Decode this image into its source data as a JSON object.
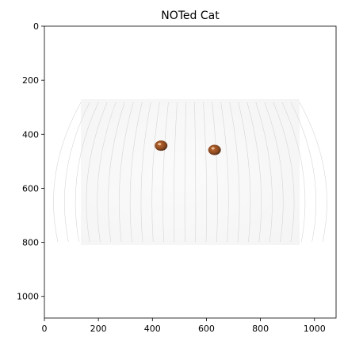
{
  "chart_data": {
    "type": "image",
    "title": "NOTed Cat",
    "xlabel": "",
    "ylabel": "",
    "xlim": [
      0,
      1080
    ],
    "ylim": [
      1080,
      0
    ],
    "x_ticks": [
      0,
      200,
      400,
      600,
      800,
      1000
    ],
    "y_ticks": [
      0,
      200,
      400,
      600,
      800,
      1000
    ],
    "grid": false,
    "image_extent": {
      "x": [
        135,
        945
      ],
      "y": [
        270,
        810
      ]
    },
    "features": {
      "eye_left_center": [
        432,
        442
      ],
      "eye_right_center": [
        630,
        458
      ],
      "eye_color": "#8a4a22"
    }
  }
}
